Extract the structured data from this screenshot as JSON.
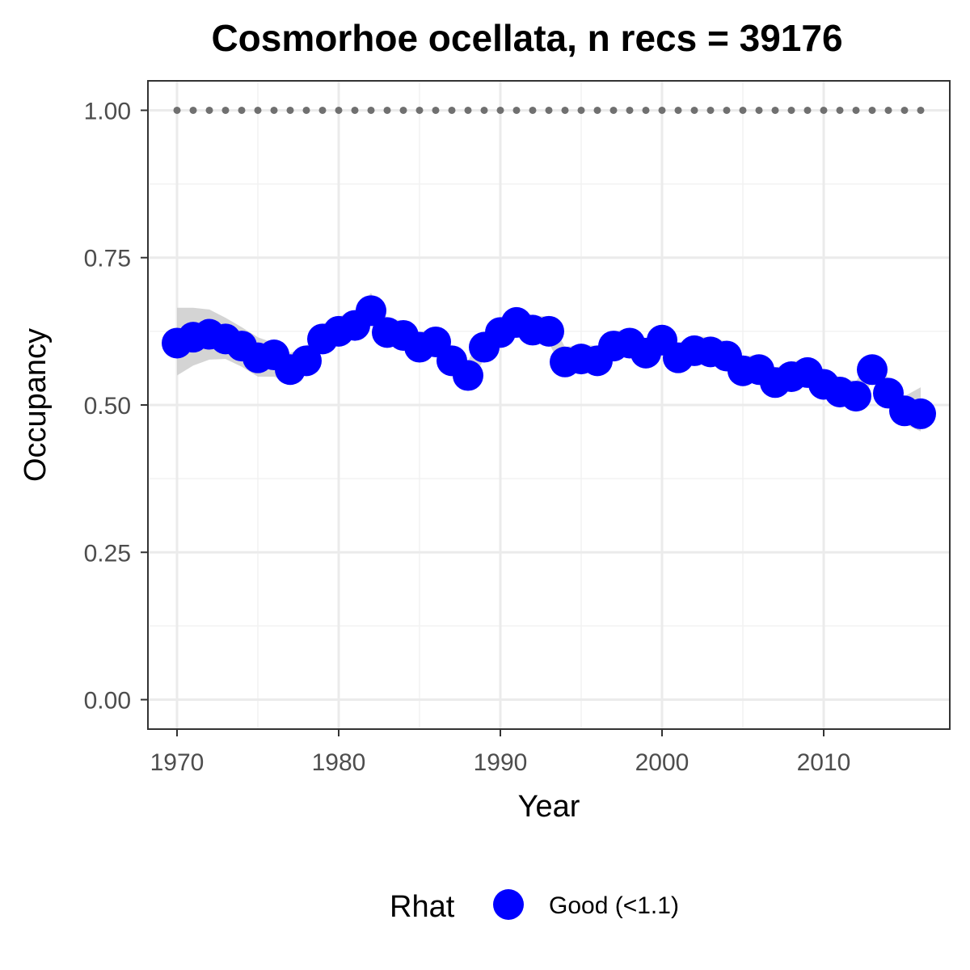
{
  "chart_data": {
    "type": "line",
    "title": "Cosmorhoe ocellata, n recs = 39176",
    "xlabel": "Year",
    "ylabel": "Occupancy",
    "xlim": [
      1968.2,
      2017.8
    ],
    "ylim": [
      -0.05,
      1.05
    ],
    "x_ticks": [
      1970,
      1980,
      1990,
      2000,
      2010
    ],
    "x_tick_labels": [
      "1970",
      "1980",
      "1990",
      "2000",
      "2010"
    ],
    "y_ticks": [
      0,
      0.25,
      0.5,
      0.75,
      1.0
    ],
    "y_tick_labels": [
      "0.00",
      "0.25",
      "0.50",
      "0.75",
      "1.00"
    ],
    "grid": true,
    "legend": {
      "position": "bottom",
      "title": "Rhat",
      "entries": [
        {
          "label": "Good (<1.1)",
          "color": "#0000ff"
        }
      ]
    },
    "colors": {
      "points": "#0000ff",
      "ribbon": "#cccccc",
      "reference_line": "#707070"
    },
    "reference_line": {
      "y": 1.0,
      "style": "dotted"
    },
    "series": [
      {
        "name": "Good (<1.1)",
        "x": [
          1970,
          1971,
          1972,
          1973,
          1974,
          1975,
          1976,
          1977,
          1978,
          1979,
          1980,
          1981,
          1982,
          1983,
          1984,
          1985,
          1986,
          1987,
          1988,
          1989,
          1990,
          1991,
          1992,
          1993,
          1994,
          1995,
          1996,
          1997,
          1998,
          1999,
          2000,
          2001,
          2002,
          2003,
          2004,
          2005,
          2006,
          2007,
          2008,
          2009,
          2010,
          2011,
          2012,
          2013,
          2014,
          2015,
          2016
        ],
        "y": [
          0.605,
          0.615,
          0.62,
          0.612,
          0.6,
          0.58,
          0.585,
          0.56,
          0.575,
          0.612,
          0.625,
          0.635,
          0.66,
          0.623,
          0.618,
          0.598,
          0.607,
          0.575,
          0.55,
          0.598,
          0.623,
          0.64,
          0.627,
          0.625,
          0.573,
          0.578,
          0.575,
          0.6,
          0.605,
          0.588,
          0.61,
          0.58,
          0.592,
          0.59,
          0.583,
          0.558,
          0.56,
          0.538,
          0.548,
          0.555,
          0.535,
          0.522,
          0.515,
          0.56,
          0.52,
          0.49,
          0.485
        ],
        "lower": [
          0.55,
          0.567,
          0.577,
          0.578,
          0.565,
          0.548,
          0.548,
          0.538,
          0.557,
          0.59,
          0.604,
          0.614,
          0.636,
          0.603,
          0.598,
          0.578,
          0.587,
          0.555,
          0.53,
          0.578,
          0.603,
          0.62,
          0.607,
          0.605,
          0.553,
          0.558,
          0.555,
          0.58,
          0.585,
          0.568,
          0.59,
          0.56,
          0.572,
          0.57,
          0.563,
          0.538,
          0.54,
          0.518,
          0.528,
          0.535,
          0.515,
          0.502,
          0.495,
          0.54,
          0.5,
          0.468,
          0.455
        ],
        "upper": [
          0.665,
          0.665,
          0.662,
          0.648,
          0.632,
          0.615,
          0.605,
          0.588,
          0.6,
          0.637,
          0.65,
          0.66,
          0.69,
          0.647,
          0.643,
          0.623,
          0.632,
          0.6,
          0.575,
          0.623,
          0.648,
          0.665,
          0.652,
          0.65,
          0.598,
          0.603,
          0.6,
          0.625,
          0.63,
          0.613,
          0.635,
          0.605,
          0.617,
          0.615,
          0.608,
          0.583,
          0.585,
          0.563,
          0.573,
          0.58,
          0.56,
          0.547,
          0.54,
          0.585,
          0.545,
          0.515,
          0.53
        ]
      }
    ]
  }
}
